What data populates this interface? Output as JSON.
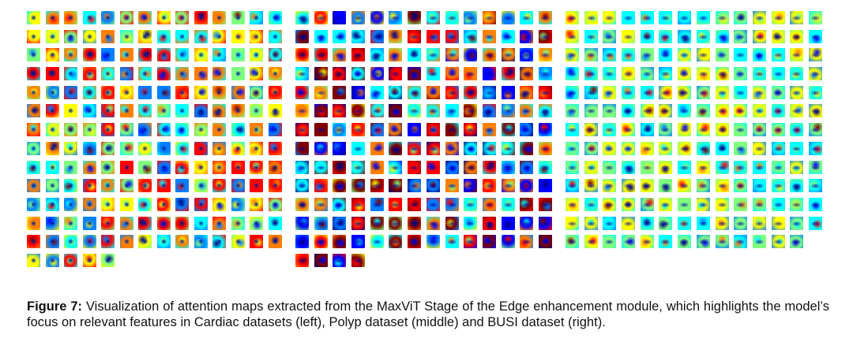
{
  "figure": {
    "label": "Figure 7:",
    "caption": "Visualization of attention maps extracted from the MaxViT Stage of the Edge enhancement module, which highlights the model’s focus on relevant features in Cardiac datasets (left), Polyp dataset (middle) and BUSI dataset (right)."
  },
  "panels": [
    {
      "id": "cardiac",
      "columns": 14,
      "tile_count": 187,
      "colormap": "jet"
    },
    {
      "id": "polyp",
      "columns": 14,
      "tile_count": 186,
      "colormap": "jet"
    },
    {
      "id": "busi",
      "columns": 14,
      "tile_count": 181,
      "colormap": "jet"
    }
  ],
  "colors": {
    "jet": [
      "#00007f",
      "#0000ff",
      "#007fff",
      "#00ffff",
      "#7fff7f",
      "#ffff00",
      "#ff7f00",
      "#ff0000",
      "#7f0000"
    ],
    "caption_text": "#111111"
  }
}
